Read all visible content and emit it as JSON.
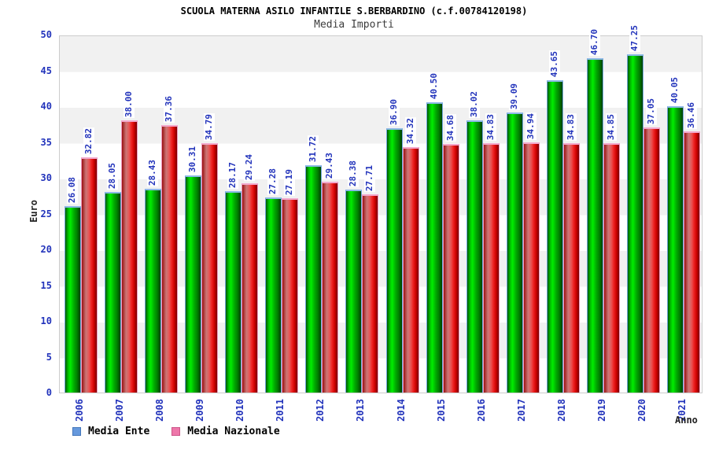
{
  "title": "SCUOLA MATERNA ASILO INFANTILE S.BERBARDINO (c.f.00784120198)",
  "subtitle": "Media Importi",
  "axes": {
    "y_label": "Euro",
    "x_label": "Anno",
    "y_ticks": [
      0,
      5,
      10,
      15,
      20,
      25,
      30,
      35,
      40,
      45,
      50
    ]
  },
  "legend": [
    {
      "label": "Media Ente",
      "swatch_color": "#6699dd",
      "swatch_border": "#4477bb"
    },
    {
      "label": "Media Nazionale",
      "swatch_color": "#ee77aa",
      "swatch_border": "#cc5588"
    }
  ],
  "colors": {
    "label_blue": "#2233bb",
    "band_gray": "#f1f1f1",
    "bar_green": "#00cc00",
    "bar_red": "#ee2222",
    "green_outline": "#74a8dc",
    "red_outline": "#ee9abf"
  },
  "chart_data": {
    "type": "bar",
    "title": "Media Importi",
    "categories": [
      "2006",
      "2007",
      "2008",
      "2009",
      "2010",
      "2011",
      "2012",
      "2013",
      "2014",
      "2015",
      "2016",
      "2017",
      "2018",
      "2019",
      "2020",
      "2021"
    ],
    "series": [
      {
        "name": "Media Ente",
        "values": [
          26.08,
          28.05,
          28.43,
          30.31,
          28.17,
          27.28,
          31.72,
          28.38,
          36.9,
          40.5,
          38.02,
          39.09,
          43.65,
          46.7,
          47.25,
          40.05
        ]
      },
      {
        "name": "Media Nazionale",
        "values": [
          32.82,
          38.0,
          37.36,
          34.79,
          29.24,
          27.19,
          29.43,
          27.71,
          34.32,
          34.68,
          34.83,
          34.94,
          34.83,
          34.85,
          37.05,
          36.46
        ]
      }
    ],
    "xlabel": "Anno",
    "ylabel": "Euro",
    "ylim": [
      0,
      50
    ],
    "grid": "horizontal-bands",
    "legend_position": "bottom-left",
    "bar_labels": "rotated-90-two-decimals"
  }
}
